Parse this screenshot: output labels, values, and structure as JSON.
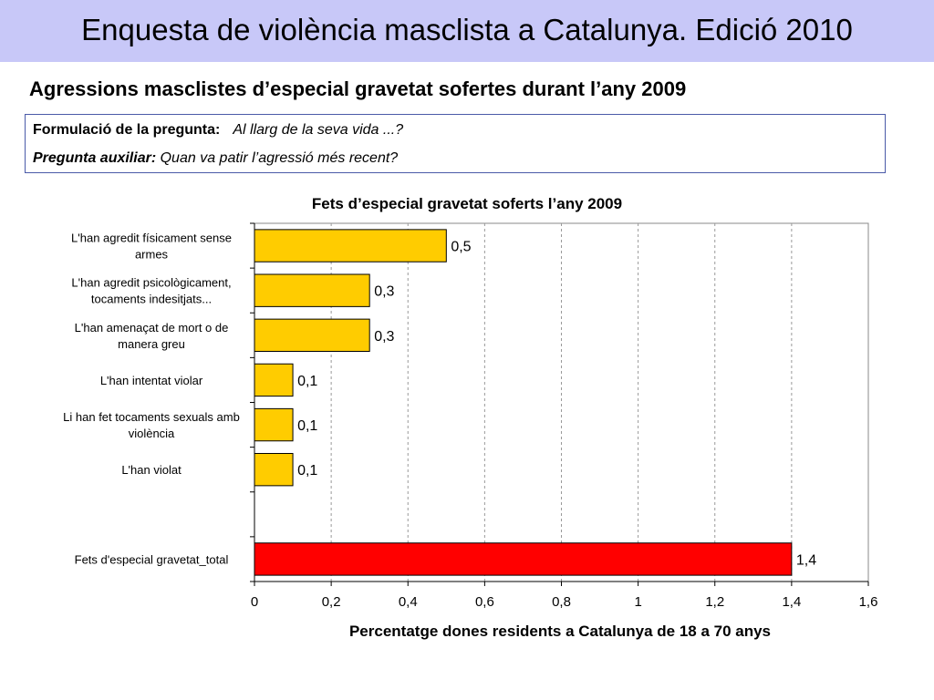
{
  "header": {
    "title": "Enquesta de violència masclista a Catalunya. Edició 2010"
  },
  "subtitle": "Agressions masclistes d’especial gravetat sofertes durant l’any 2009",
  "question_box": {
    "formulation_label": "Formulació de la pregunta:",
    "formulation_value": "Al llarg de la seva vida ...?",
    "auxiliary_label": "Pregunta auxiliar:",
    "auxiliary_value": "Quan va patir l’agressió més recent?"
  },
  "chart_data": {
    "type": "bar",
    "orientation": "horizontal",
    "title": "Fets d’especial gravetat soferts l’any 2009",
    "xlabel": "Percentatge dones residents a Catalunya de 18 a 70 anys",
    "ylabel": "",
    "xlim": [
      0,
      1.6
    ],
    "xticks": [
      "0",
      "0,2",
      "0,4",
      "0,6",
      "0,8",
      "1",
      "1,2",
      "1,4",
      "1,6"
    ],
    "grid": "vertical dashed",
    "categories": [
      [
        "L'han agredit físicament sense",
        "armes"
      ],
      [
        "L'han agredit psicològicament,",
        "tocaments indesitjats..."
      ],
      [
        "L'han amenaçat de mort o de",
        "manera greu"
      ],
      [
        "L'han intentat violar"
      ],
      [
        "Li han fet tocaments sexuals amb",
        "violència"
      ],
      [
        "L'han violat"
      ],
      [
        ""
      ],
      [
        "Fets d'especial gravetat_total"
      ]
    ],
    "values": [
      0.5,
      0.3,
      0.3,
      0.1,
      0.1,
      0.1,
      null,
      1.4
    ],
    "data_labels": [
      "0,5",
      "0,3",
      "0,3",
      "0,1",
      "0,1",
      "0,1",
      "",
      "1,4"
    ],
    "colors": [
      "#ffcc00",
      "#ffcc00",
      "#ffcc00",
      "#ffcc00",
      "#ffcc00",
      "#ffcc00",
      "",
      "#ff0000"
    ]
  }
}
